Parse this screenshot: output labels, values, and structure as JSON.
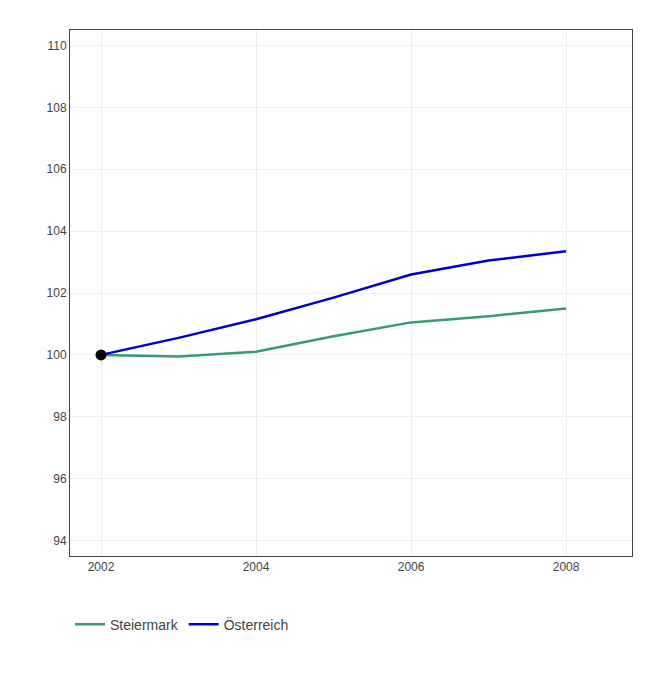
{
  "chart_data": {
    "type": "line",
    "x": [
      2002,
      2003,
      2004,
      2005,
      2006,
      2007,
      2008
    ],
    "series": [
      {
        "name": "Steiermark",
        "color": "#3a9a6e",
        "values": [
          100.0,
          99.95,
          100.1,
          100.6,
          101.05,
          101.25,
          101.5
        ]
      },
      {
        "name": "Österreich",
        "color": "#0000cc",
        "values": [
          100.0,
          100.55,
          101.15,
          101.85,
          102.6,
          103.05,
          103.35
        ]
      },
      {
        "type": "scatter",
        "color": "#000000",
        "marker": "circle",
        "values": [
          100.0,
          null,
          null,
          null,
          null,
          null,
          null
        ]
      }
    ],
    "xlim": [
      2001.6,
      2008.85
    ],
    "xticks": [
      2002,
      2004,
      2006,
      2008
    ],
    "ylim": [
      93.5,
      110.5
    ],
    "yticks": [
      94,
      96,
      98,
      100,
      102,
      104,
      106,
      108,
      110
    ],
    "grid": true,
    "legend": "bottom"
  }
}
